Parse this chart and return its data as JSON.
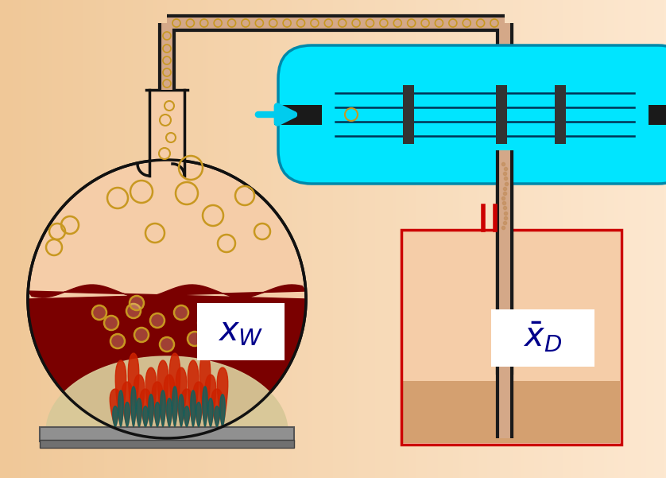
{
  "figsize": [
    8.38,
    6.01
  ],
  "dpi": 100,
  "bg_color_left": "#f0c898",
  "bg_color_right": "#fde8d0",
  "flask_fill": "#f5cda8",
  "flask_edge": "#111111",
  "liquid_color": "#7a0000",
  "bubble_edge": "#c89820",
  "bubble_fill": "none",
  "flame_red": "#cc2200",
  "flame_inner": "#006666",
  "dome_fill": "#d8c898",
  "plate_fill": "#909090",
  "plate_edge": "#555555",
  "pipe_outer": "#1a1a1a",
  "pipe_inner": "#d4a888",
  "pipe_lw_out": 16,
  "pipe_lw_in": 10,
  "cond_fill": "#00e5ff",
  "cond_edge": "#0088aa",
  "cond_baffle": "#333333",
  "cond_line": "#003355",
  "arrow_cyan": "#00ccee",
  "collect_edge": "#cc0000",
  "collect_fill": "#f5cda8",
  "collect_liquid": "#d4a070",
  "red_tube": "#cc0000",
  "label_blue": "#00008b",
  "label_bg": "#ffffff",
  "particle_color": "#c49060",
  "neck_bubble_edge": "#c89820"
}
